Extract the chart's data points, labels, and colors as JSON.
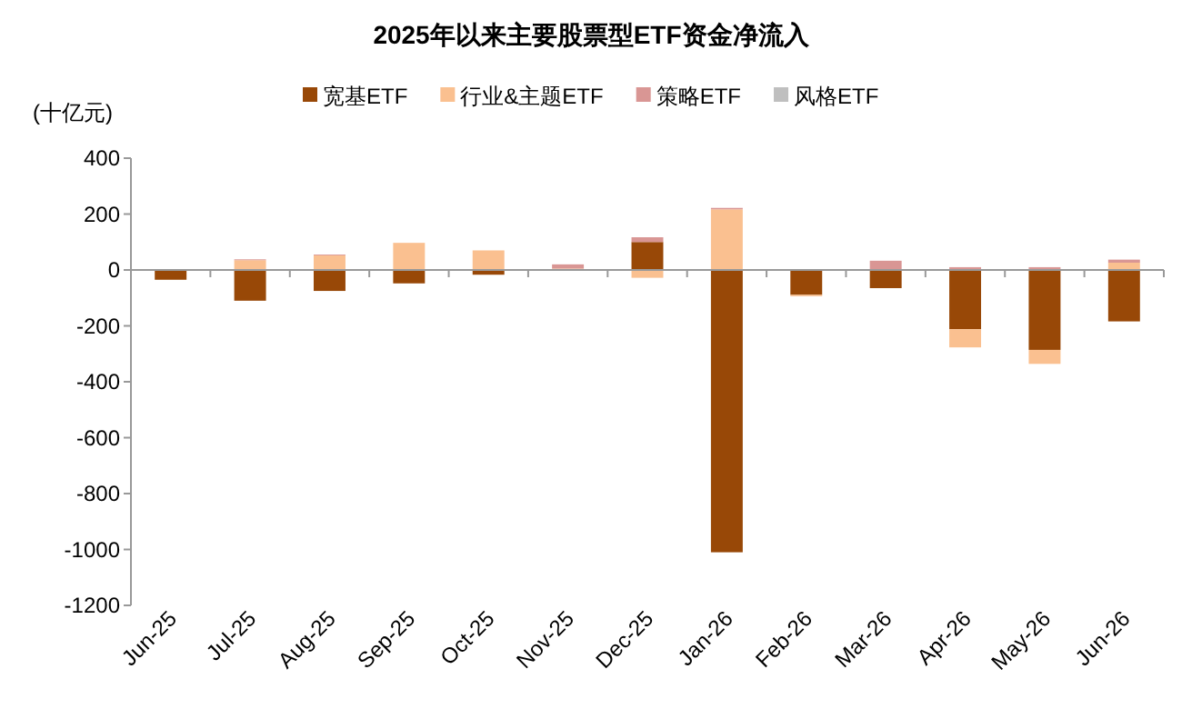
{
  "chart_data": {
    "type": "bar",
    "title": "2025年以来主要股票型ETF资金净流入",
    "ylabel": "(十亿元)",
    "stacked": true,
    "categories": [
      "Jun-25",
      "Jul-25",
      "Aug-25",
      "Sep-25",
      "Oct-25",
      "Nov-25",
      "Dec-25",
      "Jan-26",
      "Feb-26",
      "Mar-26",
      "Apr-26",
      "May-26",
      "Jun-26"
    ],
    "series": [
      {
        "name": "宽基ETF",
        "color": "#984807",
        "values": [
          -35,
          -110,
          -75,
          -48,
          -17,
          null,
          100,
          -1010,
          -89,
          -65,
          -212,
          -286,
          -184
        ]
      },
      {
        "name": "行业&主题ETF",
        "color": "#fac090",
        "values": [
          0,
          35,
          52,
          97,
          70,
          5,
          -28,
          217,
          -5,
          3,
          -65,
          -50,
          26
        ]
      },
      {
        "name": "策略ETF",
        "color": "#d99694",
        "values": [
          null,
          3,
          3,
          null,
          0,
          15,
          17,
          5,
          0,
          30,
          10,
          10,
          11
        ]
      },
      {
        "name": "风格ETF",
        "color": "#bfbfbf",
        "values": [
          0,
          0,
          0,
          0,
          0,
          0,
          0,
          0,
          0,
          0,
          0,
          0,
          null
        ]
      }
    ],
    "ylim": [
      -1200,
      400
    ],
    "yticks": [
      -1200,
      -1000,
      -800,
      -600,
      -400,
      -200,
      0,
      200,
      400
    ],
    "legend": "top"
  }
}
